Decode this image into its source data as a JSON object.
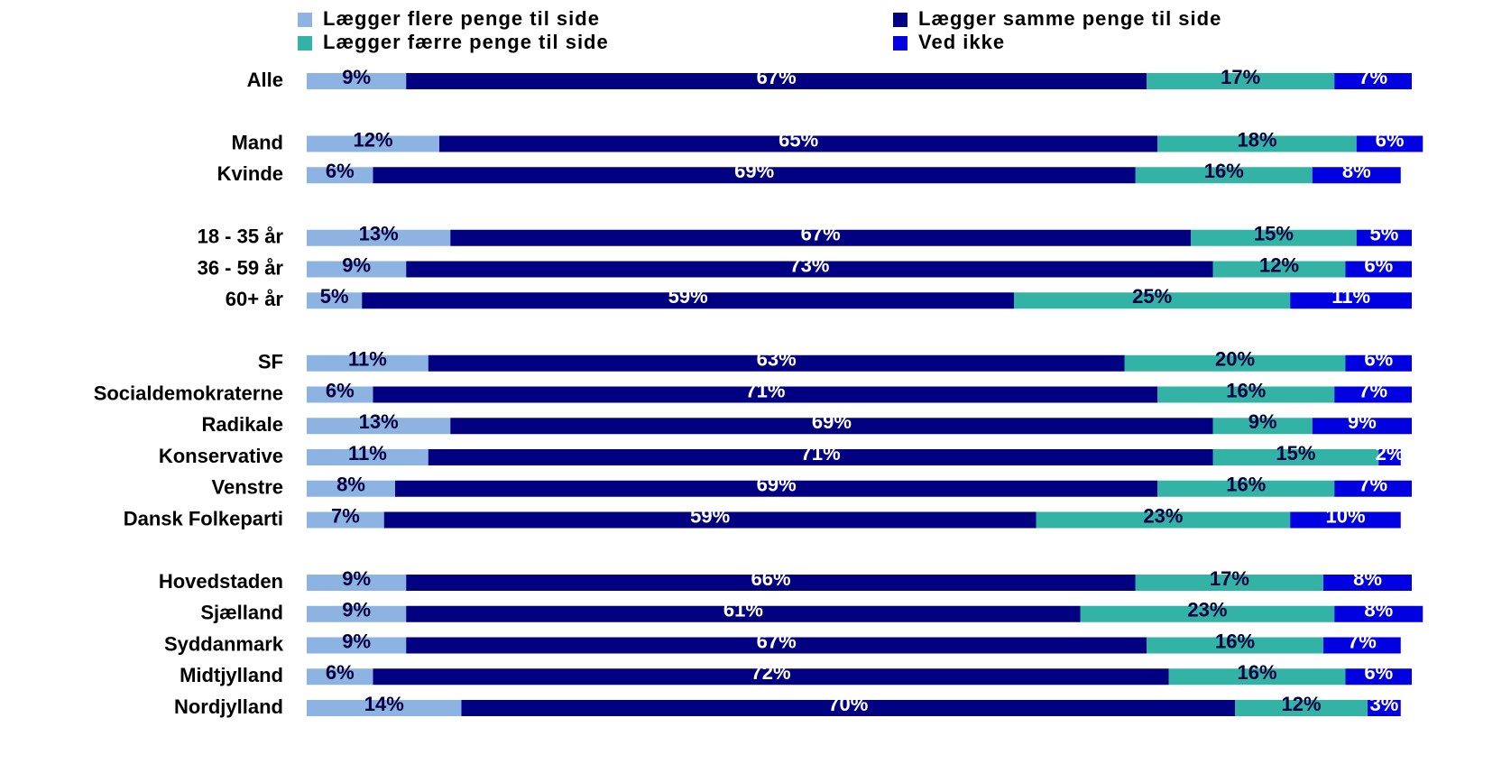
{
  "chart_data": {
    "type": "stacked-bar-horizontal",
    "categories": [
      "Alle",
      null,
      "Mand",
      "Kvinde",
      null,
      "18 - 35 år",
      "36 - 59 år",
      "60+ år",
      null,
      "SF",
      "Socialdemokraterne",
      "Radikale",
      "Konservative",
      "Venstre",
      "Dansk Folkeparti",
      null,
      "Hovedstaden",
      "Sjælland",
      "Syddanmark",
      "Midtjylland",
      "Nordjylland"
    ],
    "xlim": [
      0,
      100
    ],
    "legend": "top",
    "series": [
      {
        "name": "Lægger flere penge til side",
        "color": "#8db3e2",
        "text_color": "#000040",
        "values": [
          9,
          null,
          12,
          6,
          null,
          13,
          9,
          5,
          null,
          11,
          6,
          13,
          11,
          8,
          7,
          null,
          9,
          9,
          9,
          6,
          14
        ],
        "value_labels": [
          "9%",
          null,
          "12%",
          "6%",
          null,
          "13%",
          "9%",
          "5%",
          null,
          "11%",
          "6%",
          "13%",
          "11%",
          "8%",
          "7%",
          null,
          "9%",
          "9%",
          "9%",
          "6%",
          "14%"
        ]
      },
      {
        "name": "Lægger samme penge til side",
        "color": "#000080",
        "text_color": "#ffffff",
        "values": [
          67,
          null,
          65,
          69,
          null,
          67,
          73,
          59,
          null,
          63,
          71,
          69,
          71,
          69,
          59,
          null,
          66,
          61,
          67,
          72,
          70
        ],
        "value_labels": [
          "67%",
          null,
          "65%",
          "69%",
          null,
          "67%",
          "73%",
          "59%",
          null,
          "63%",
          "71%",
          "69%",
          "71%",
          "69%",
          "59%",
          null,
          "66%",
          "61%",
          "67%",
          "72%",
          "70%"
        ]
      },
      {
        "name": "Lægger færre penge til side",
        "color": "#33b3a6",
        "text_color": "#000040",
        "values": [
          17,
          null,
          18,
          16,
          null,
          15,
          12,
          25,
          null,
          20,
          16,
          9,
          15,
          16,
          23,
          null,
          17,
          23,
          16,
          16,
          12
        ],
        "value_labels": [
          "17%",
          null,
          "18%",
          "16%",
          null,
          "15%",
          "12%",
          "25%",
          null,
          "20%",
          "16%",
          "9%",
          "15%",
          "16%",
          "23%",
          null,
          "17%",
          "23%",
          "16%",
          "16%",
          "12%"
        ]
      },
      {
        "name": "Ved ikke",
        "color": "#0000e0",
        "text_color": "#ffffff",
        "values": [
          7,
          null,
          6,
          8,
          null,
          5,
          6,
          11,
          null,
          6,
          7,
          9,
          2,
          7,
          10,
          null,
          8,
          8,
          7,
          6,
          3
        ],
        "value_labels": [
          "7%",
          null,
          "6%",
          "8%",
          null,
          "5%",
          "6%",
          "11%",
          null,
          "6%",
          "7%",
          "9%",
          "2%",
          "7%",
          "10%",
          null,
          "8%",
          "8%",
          "7%",
          "6%",
          "3%"
        ]
      }
    ]
  }
}
